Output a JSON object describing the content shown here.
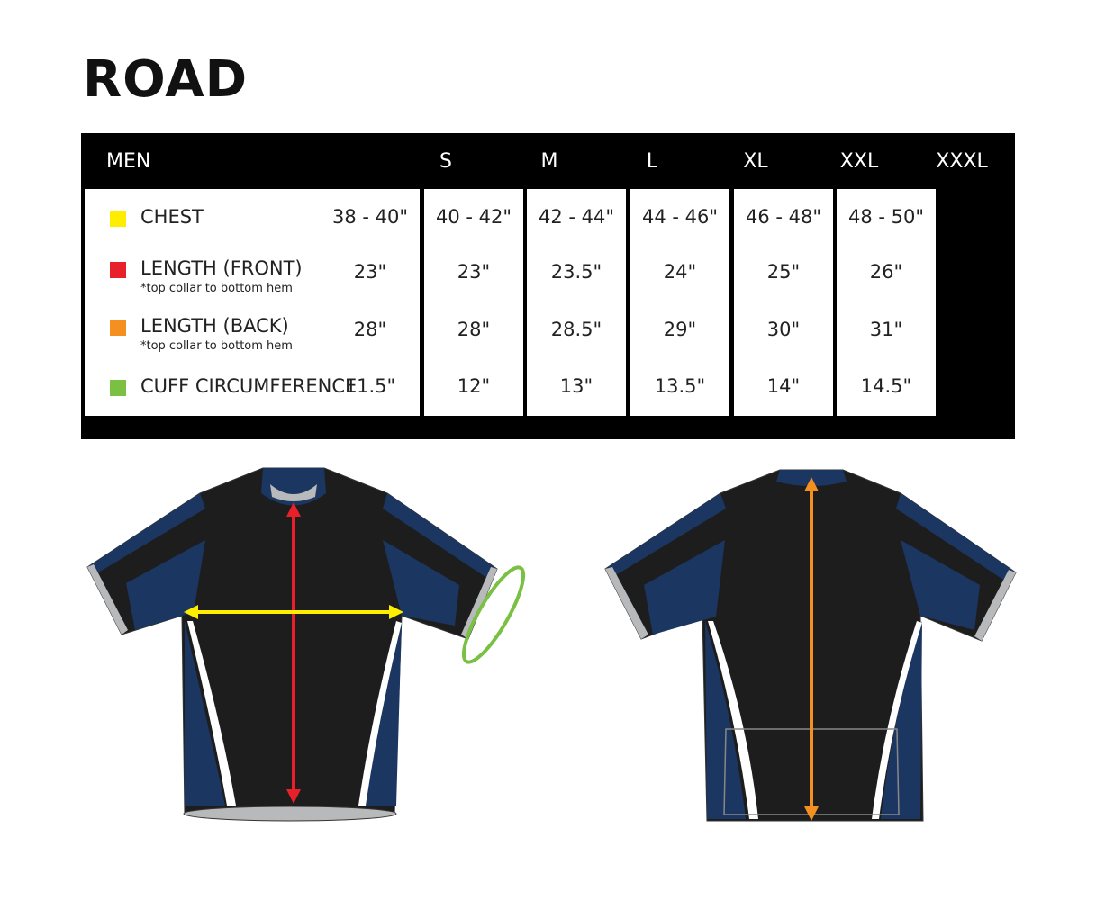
{
  "title": "ROAD",
  "table": {
    "header": "MEN",
    "sizes": [
      "S",
      "M",
      "L",
      "XL",
      "XXL",
      "XXXL"
    ],
    "rows": [
      {
        "label": "CHEST",
        "note": "",
        "color": "#ffed00",
        "values": [
          "38 - 40\"",
          "40 - 42\"",
          "42 - 44\"",
          "44 - 46\"",
          "46 - 48\"",
          "48 - 50\""
        ]
      },
      {
        "label": "LENGTH (FRONT)",
        "note": "*top collar to bottom hem",
        "color": "#e8202a",
        "values": [
          "23\"",
          "23\"",
          "23.5\"",
          "24\"",
          "25\"",
          "26\""
        ]
      },
      {
        "label": "LENGTH (BACK)",
        "note": "*top collar to bottom hem",
        "color": "#f39020",
        "values": [
          "28\"",
          "28\"",
          "28.5\"",
          "29\"",
          "30\"",
          "31\""
        ]
      },
      {
        "label": "CUFF CIRCUMFERENCE",
        "note": "",
        "color": "#7ac143",
        "values": [
          "11.5\"",
          "12\"",
          "13\"",
          "13.5\"",
          "14\"",
          "14.5\""
        ]
      }
    ]
  },
  "colors": {
    "jersey_black": "#1e1d1e",
    "jersey_navy": "#1b3660",
    "jersey_gray": "#b8b9bb"
  }
}
